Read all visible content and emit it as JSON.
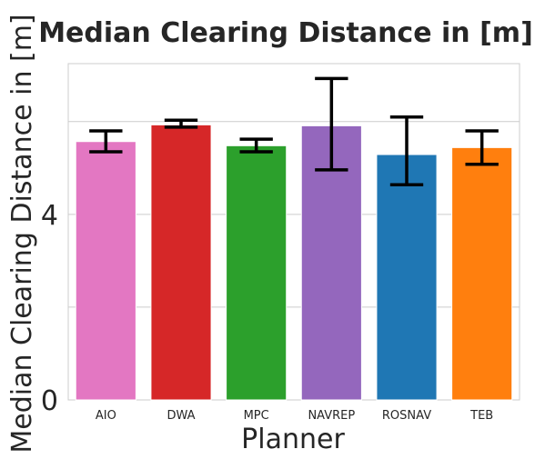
{
  "chart_data": {
    "type": "bar",
    "title": "Median Clearing Distance in [m]",
    "xlabel": "Planner",
    "ylabel": "Median Clearing Distance in [m]",
    "categories": [
      "AIO",
      "DWA",
      "MPC",
      "NAVREP",
      "ROSNAV",
      "TEB"
    ],
    "values": [
      5.57,
      5.93,
      5.48,
      5.91,
      5.29,
      5.44
    ],
    "error_low": [
      5.35,
      5.88,
      5.35,
      4.96,
      4.64,
      5.08
    ],
    "error_high": [
      5.8,
      6.03,
      5.62,
      6.93,
      6.1,
      5.8
    ],
    "colors": [
      "#e377c2",
      "#d62728",
      "#2ca02c",
      "#9467bd",
      "#1f77b4",
      "#ff7f0e"
    ],
    "ylim": [
      0,
      7.25
    ],
    "yticks": [
      0,
      4
    ],
    "ygrid": [
      2,
      4,
      6
    ],
    "grid": true
  }
}
